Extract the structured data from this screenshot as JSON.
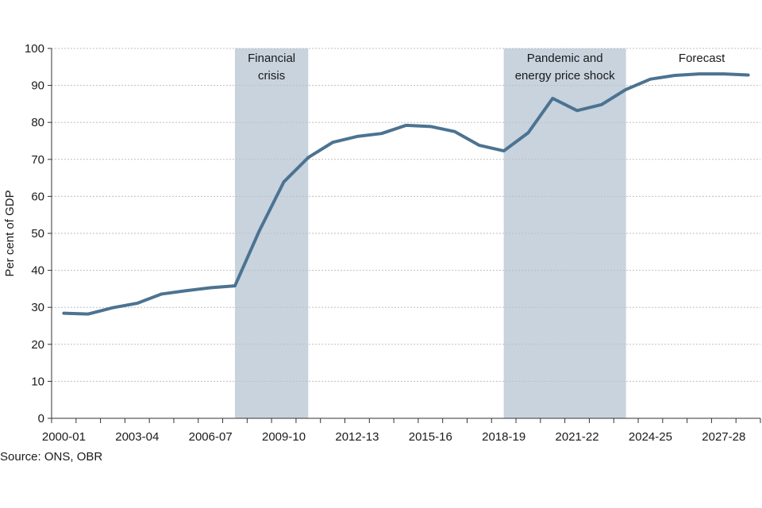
{
  "chart_data": {
    "type": "line",
    "ylabel": "Per cent of GDP",
    "ylim": [
      0,
      100
    ],
    "yticks": [
      0,
      10,
      20,
      30,
      40,
      50,
      60,
      70,
      80,
      90,
      100
    ],
    "grid": "horizontal dashed",
    "x": [
      "2000-01",
      "2001-02",
      "2002-03",
      "2003-04",
      "2004-05",
      "2005-06",
      "2006-07",
      "2007-08",
      "2008-09",
      "2009-10",
      "2010-11",
      "2011-12",
      "2012-13",
      "2013-14",
      "2014-15",
      "2015-16",
      "2016-17",
      "2017-18",
      "2018-19",
      "2019-20",
      "2020-21",
      "2021-22",
      "2022-23",
      "2023-24",
      "2024-25",
      "2025-26",
      "2026-27",
      "2027-28",
      "2028-29"
    ],
    "xtick_labels": [
      "2000-01",
      "2003-04",
      "2006-07",
      "2009-10",
      "2012-13",
      "2015-16",
      "2018-19",
      "2021-22",
      "2024-25",
      "2027-28"
    ],
    "series": [
      {
        "values": [
          28.4,
          28.2,
          29.9,
          31.1,
          33.6,
          34.5,
          35.3,
          35.8,
          50.7,
          63.9,
          70.5,
          74.6,
          76.2,
          77.0,
          79.2,
          78.9,
          77.5,
          73.8,
          72.3,
          77.2,
          86.5,
          83.2,
          84.8,
          88.9,
          91.7,
          92.7,
          93.1,
          93.1,
          92.8
        ]
      }
    ],
    "shaded_regions": [
      {
        "label": [
          "Financial",
          "crisis"
        ],
        "start": 7.5,
        "end": 10.5
      },
      {
        "label": [
          "Pandemic and",
          "energy price shock"
        ],
        "start": 18.5,
        "end": 23.5
      }
    ],
    "annotations": [
      {
        "text": "Forecast",
        "x_index": 26.1
      }
    ],
    "colors": {
      "line": "#4c7391",
      "shade": "#c8d3de"
    }
  },
  "source": "Source: ONS, OBR"
}
